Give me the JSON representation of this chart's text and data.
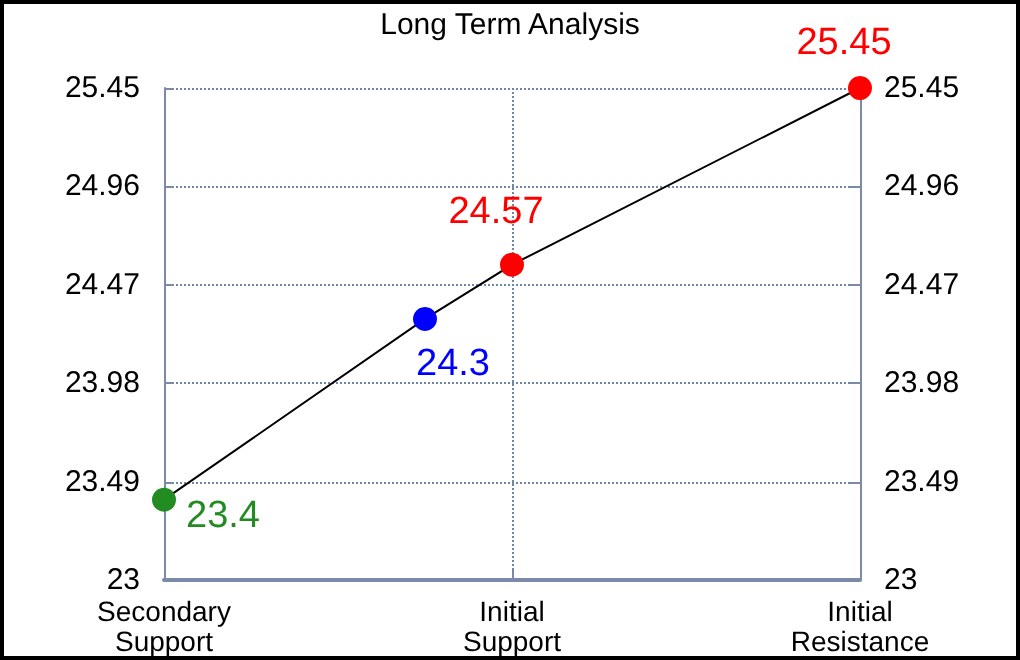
{
  "chart_data": {
    "type": "line",
    "title": "Long Term Analysis",
    "categories": [
      "Secondary\nSupport",
      null,
      null,
      null,
      "Initial\nSupport",
      null,
      null,
      null,
      "Initial\nResistance"
    ],
    "ylim": [
      23,
      25.45
    ],
    "yticks": [
      23,
      23.49,
      23.98,
      24.47,
      24.96,
      25.45
    ],
    "y2lim": [
      23,
      25.45
    ],
    "y2ticks": [
      23,
      23.49,
      23.98,
      24.47,
      24.96,
      25.45
    ],
    "grid": true,
    "series": [
      {
        "color": "#000000",
        "marker": "circle",
        "line_style": "solid",
        "values": [
          23.4,
          null,
          null,
          24.3,
          24.57,
          null,
          null,
          null,
          25.45
        ],
        "colors": [
          "#228b22",
          null,
          null,
          "#0000ff",
          "#ff0000",
          null,
          null,
          null,
          "#ff0000"
        ],
        "data_labels": true
      }
    ]
  }
}
